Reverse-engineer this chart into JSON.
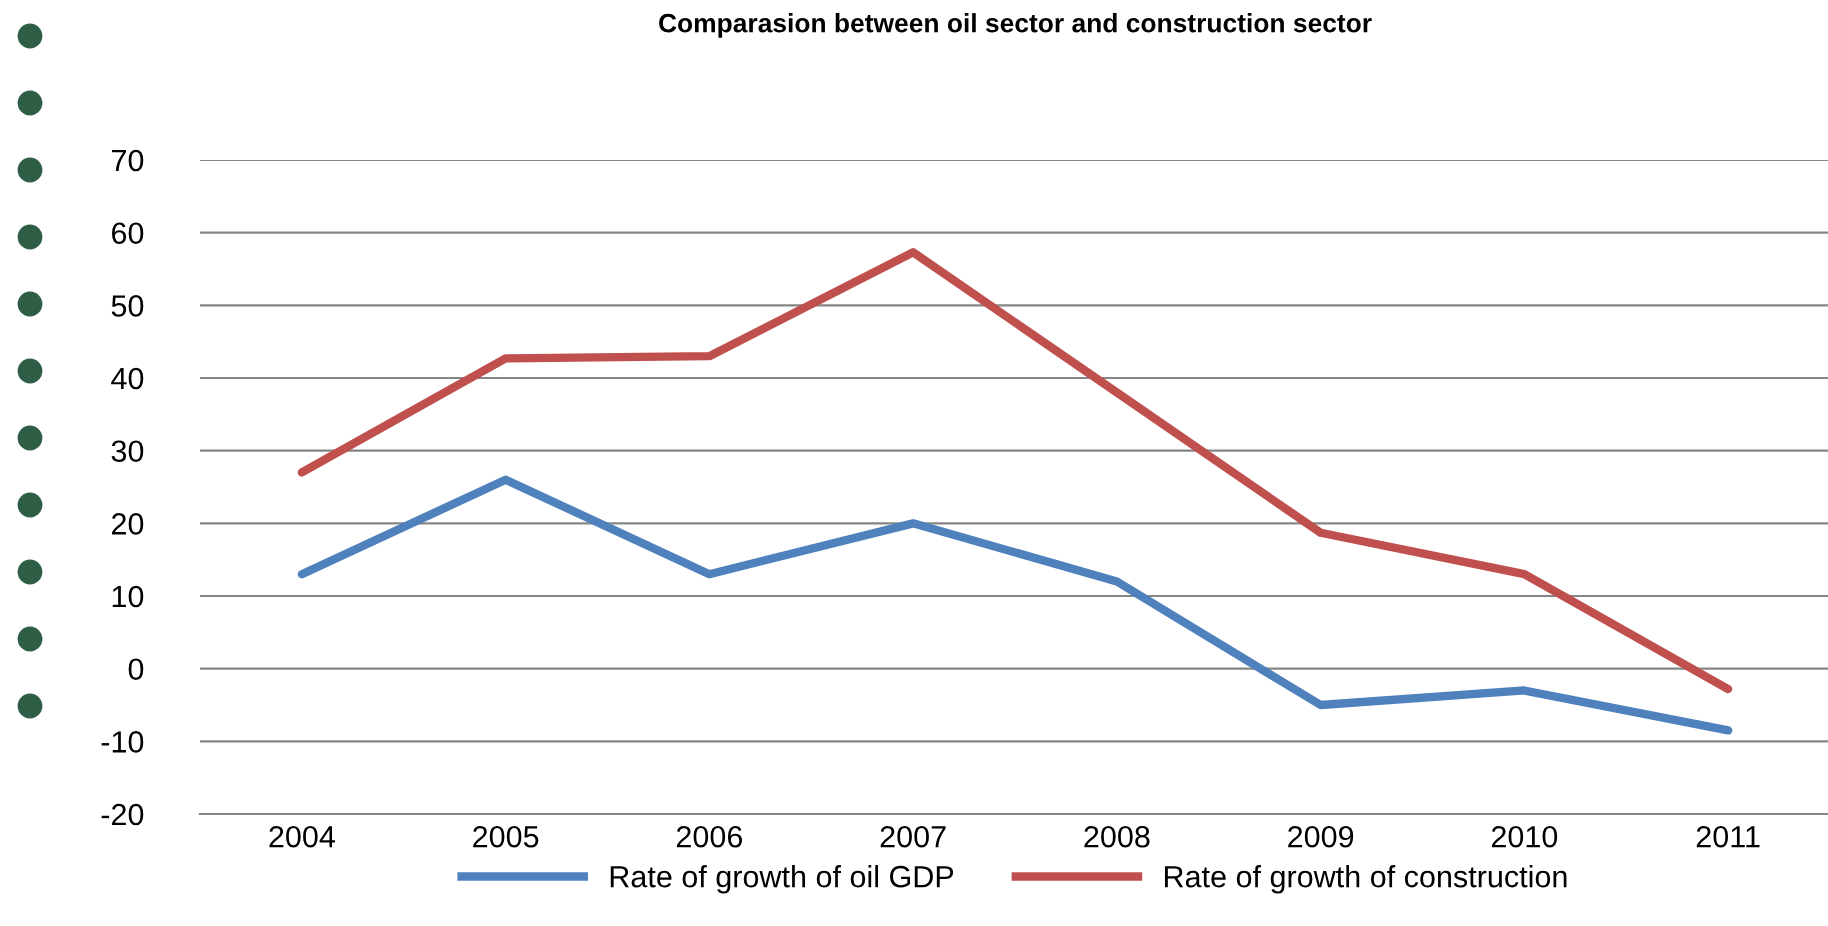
{
  "chart_data": {
    "type": "line",
    "title": "Comparasion between oil sector and construction sector",
    "categories": [
      "2004",
      "2005",
      "2006",
      "2007",
      "2008",
      "2009",
      "2010",
      "2011"
    ],
    "series": [
      {
        "name": "Rate of growth of oil GDP",
        "color": "#4f81bd",
        "values": [
          13,
          26,
          13,
          20,
          12,
          -5,
          -3,
          -8.5
        ]
      },
      {
        "name": "Rate of growth of construction",
        "color": "#c0504d",
        "values": [
          27,
          42.7,
          43,
          57.3,
          38,
          18.7,
          13,
          -2.8
        ]
      }
    ],
    "ylim": [
      -20,
      70
    ],
    "yticks": [
      -20,
      -10,
      0,
      10,
      20,
      30,
      40,
      50,
      60,
      70
    ],
    "grid": "y",
    "legend": "bottom",
    "marker": "none",
    "line_style": "solid"
  }
}
